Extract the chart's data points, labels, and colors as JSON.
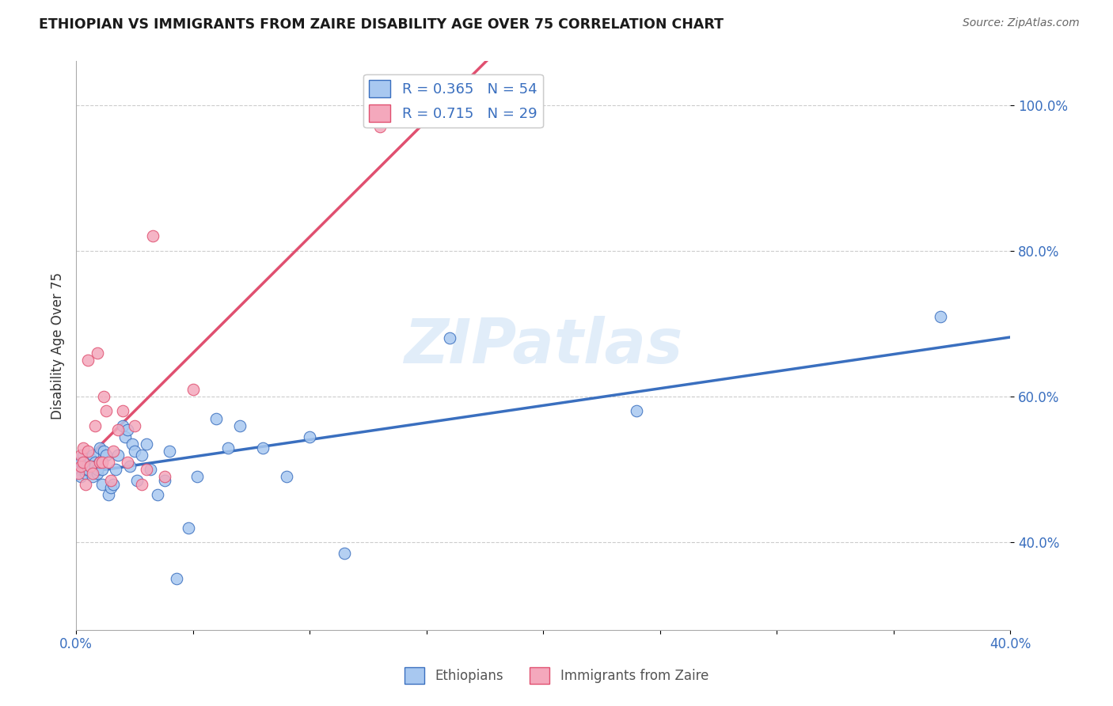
{
  "title": "ETHIOPIAN VS IMMIGRANTS FROM ZAIRE DISABILITY AGE OVER 75 CORRELATION CHART",
  "source": "Source: ZipAtlas.com",
  "ylabel": "Disability Age Over 75",
  "xlim": [
    0.0,
    0.4
  ],
  "ylim": [
    0.28,
    1.06
  ],
  "yticks": [
    0.4,
    0.6,
    0.8,
    1.0
  ],
  "xticks": [
    0.0,
    0.05,
    0.1,
    0.15,
    0.2,
    0.25,
    0.3,
    0.35,
    0.4
  ],
  "xtick_labels": [
    "0.0%",
    "",
    "",
    "",
    "",
    "",
    "",
    "",
    "40.0%"
  ],
  "ytick_labels": [
    "40.0%",
    "60.0%",
    "80.0%",
    "100.0%"
  ],
  "R_ethiopians": 0.365,
  "N_ethiopians": 54,
  "R_zaire": 0.715,
  "N_zaire": 29,
  "color_ethiopians": "#A8C8F0",
  "color_zaire": "#F4A8BC",
  "line_color_ethiopians": "#3A6FBF",
  "line_color_zaire": "#E05070",
  "background_color": "#FFFFFF",
  "grid_color": "#CCCCCC",
  "watermark_text": "ZIPatlas",
  "ethiopians_x": [
    0.001,
    0.002,
    0.002,
    0.003,
    0.003,
    0.004,
    0.004,
    0.005,
    0.005,
    0.006,
    0.006,
    0.007,
    0.007,
    0.008,
    0.008,
    0.009,
    0.009,
    0.01,
    0.01,
    0.011,
    0.011,
    0.012,
    0.013,
    0.014,
    0.015,
    0.016,
    0.017,
    0.018,
    0.02,
    0.021,
    0.022,
    0.023,
    0.024,
    0.025,
    0.026,
    0.028,
    0.03,
    0.032,
    0.035,
    0.038,
    0.04,
    0.043,
    0.048,
    0.052,
    0.06,
    0.065,
    0.07,
    0.08,
    0.09,
    0.1,
    0.115,
    0.16,
    0.24,
    0.37
  ],
  "ethiopians_y": [
    0.5,
    0.49,
    0.51,
    0.505,
    0.52,
    0.495,
    0.5,
    0.51,
    0.5,
    0.505,
    0.515,
    0.49,
    0.52,
    0.51,
    0.505,
    0.495,
    0.5,
    0.53,
    0.51,
    0.5,
    0.48,
    0.525,
    0.52,
    0.465,
    0.475,
    0.48,
    0.5,
    0.52,
    0.56,
    0.545,
    0.555,
    0.505,
    0.535,
    0.525,
    0.485,
    0.52,
    0.535,
    0.5,
    0.465,
    0.485,
    0.525,
    0.35,
    0.42,
    0.49,
    0.57,
    0.53,
    0.56,
    0.53,
    0.49,
    0.545,
    0.385,
    0.68,
    0.58,
    0.71
  ],
  "zaire_x": [
    0.001,
    0.002,
    0.002,
    0.003,
    0.003,
    0.004,
    0.005,
    0.005,
    0.006,
    0.007,
    0.008,
    0.009,
    0.01,
    0.011,
    0.012,
    0.013,
    0.014,
    0.015,
    0.016,
    0.018,
    0.02,
    0.022,
    0.025,
    0.028,
    0.03,
    0.033,
    0.038,
    0.05,
    0.13
  ],
  "zaire_y": [
    0.495,
    0.505,
    0.52,
    0.51,
    0.53,
    0.48,
    0.525,
    0.65,
    0.505,
    0.495,
    0.56,
    0.66,
    0.51,
    0.51,
    0.6,
    0.58,
    0.51,
    0.485,
    0.525,
    0.555,
    0.58,
    0.51,
    0.56,
    0.48,
    0.5,
    0.82,
    0.49,
    0.61,
    0.97
  ]
}
